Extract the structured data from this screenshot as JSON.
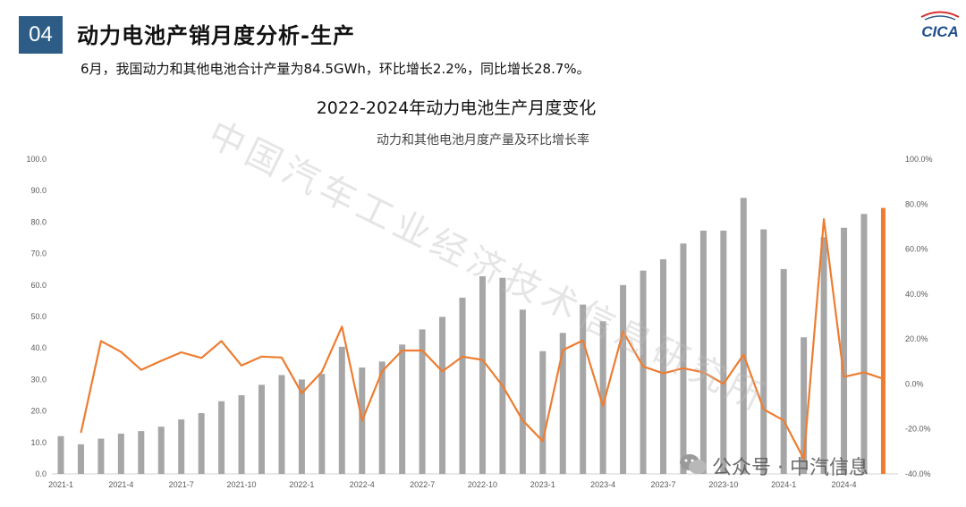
{
  "header": {
    "section_number": "04",
    "title": "动力电池产销月度分析-生产",
    "summary": "6月，我国动力和其他电池合计产量为84.5GWh，环比增长2.2%，同比增长28.7%。",
    "logo_text": "CICA"
  },
  "watermark": {
    "text": "中国汽车工业经济技术信息研究所",
    "account": "公众号 · 中汽信息"
  },
  "colors": {
    "badge": "#2d5d87",
    "bars": "#a6a6a6",
    "bar_highlight": "#ed7d31",
    "line": "#ed7d31"
  },
  "chart_data": {
    "type": "bar",
    "title": "2022-2024年动力电池生产月度变化",
    "subtitle": "动力和其他电池月度产量及环比增长率",
    "categories": [
      "2021-1",
      "2021-2",
      "2021-3",
      "2021-4",
      "2021-5",
      "2021-6",
      "2021-7",
      "2021-8",
      "2021-9",
      "2021-10",
      "2021-11",
      "2021-12",
      "2022-1",
      "2022-2",
      "2022-3",
      "2022-4",
      "2022-5",
      "2022-6",
      "2022-7",
      "2022-8",
      "2022-9",
      "2022-10",
      "2022-11",
      "2022-12",
      "2023-1",
      "2023-2",
      "2023-3",
      "2023-4",
      "2023-5",
      "2023-6",
      "2023-7",
      "2023-8",
      "2023-9",
      "2023-10",
      "2023-11",
      "2023-12",
      "2024-1",
      "2024-2",
      "2024-3",
      "2024-4",
      "2024-5",
      "2024-6"
    ],
    "x_tick_labels": [
      "2021-1",
      "2021-4",
      "2021-7",
      "2021-10",
      "2022-1",
      "2022-4",
      "2022-7",
      "2022-10",
      "2023-1",
      "2023-4",
      "2023-7",
      "2023-10",
      "2024-1",
      "2024-4"
    ],
    "series": [
      {
        "type": "bar",
        "axis": "left",
        "values": [
          12.0,
          9.4,
          11.2,
          12.8,
          13.6,
          15.0,
          17.3,
          19.3,
          23.1,
          25.0,
          28.3,
          31.4,
          30.0,
          31.8,
          40.4,
          33.8,
          35.7,
          41.1,
          45.9,
          49.9,
          56.0,
          62.8,
          62.3,
          52.2,
          39.0,
          44.8,
          53.8,
          48.5,
          60.0,
          64.6,
          68.2,
          73.2,
          77.3,
          77.3,
          87.7,
          77.7,
          65.1,
          43.4,
          75.2,
          78.2,
          82.6,
          84.5
        ],
        "highlight_index": 41
      },
      {
        "type": "line",
        "axis": "right",
        "values": [
          null,
          -21.7,
          19.1,
          14.3,
          6.3,
          10.3,
          14.1,
          11.6,
          19.1,
          8.2,
          12.2,
          11.8,
          -4.1,
          5.4,
          25.5,
          -16.3,
          5.6,
          14.9,
          14.9,
          5.6,
          12.2,
          10.7,
          -0.8,
          -16.2,
          -25.4,
          15.1,
          19.4,
          -9.7,
          23.3,
          7.8,
          4.7,
          7.0,
          5.2,
          0.1,
          13.1,
          -11.3,
          -16.2,
          -33.3,
          73.3,
          3.2,
          5.2,
          2.2
        ]
      }
    ],
    "ylim_left": [
      0,
      100
    ],
    "yticks_left": [
      "0.0",
      "10.0",
      "20.0",
      "30.0",
      "40.0",
      "50.0",
      "60.0",
      "70.0",
      "80.0",
      "90.0",
      "100.0"
    ],
    "ylim_right": [
      -40,
      100
    ],
    "yticks_right": [
      "-40.0%",
      "-20.0%",
      "0.0%",
      "20.0%",
      "40.0%",
      "60.0%",
      "80.0%",
      "100.0%"
    ],
    "grid": false
  }
}
